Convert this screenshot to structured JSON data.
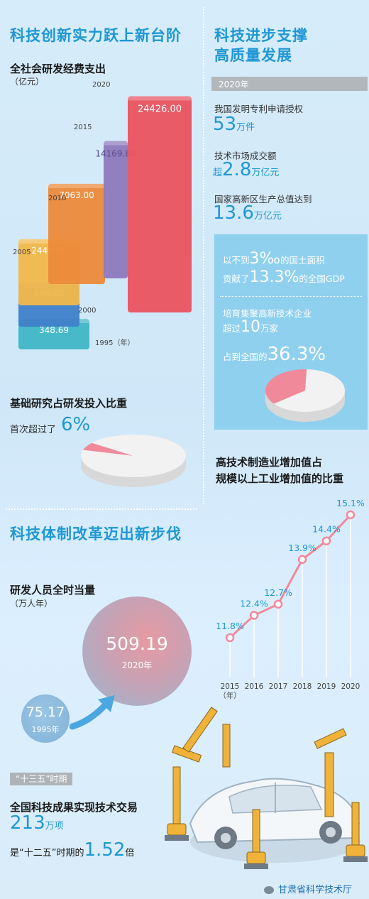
{
  "left": {
    "title": "科技创新实力跃上新台阶",
    "rd_title": "全社会研发经费支出",
    "rd_unit": "（亿元）",
    "basic_title": "基础研究占研发投入比重",
    "basic_text": "首次超过了",
    "basic_value": "6%"
  },
  "right": {
    "title_line1": "科技进步支撑",
    "title_line2": "高质量发展",
    "year_tag": "2020年",
    "items": [
      {
        "label": "我国发明专利申请授权",
        "prefix": "",
        "value": "53",
        "unit": "万件"
      },
      {
        "label": "技术市场成交额",
        "prefix": "超",
        "value": "2.8",
        "unit": "万亿元"
      },
      {
        "label": "国家高新区生产总值达到",
        "prefix": "",
        "value": "13.6",
        "unit": "万亿元"
      }
    ],
    "panel1_pre": "以不到",
    "panel1_val1": "3‰",
    "panel1_mid": "的国土面积",
    "panel1_pre2": "贡献了",
    "panel1_val2": "13.3%",
    "panel1_post": "的全国GDP",
    "panel2_line1": "培育集聚高新技术企业",
    "panel2_pre": "超过",
    "panel2_val": "10",
    "panel2_unit": "万家",
    "panel2_pre2": "占到全国的",
    "panel2_val2": "36.3%",
    "mfg_title_line1": "高技术制造业增加值占",
    "mfg_title_line2": "规模以上工业增加值的比重"
  },
  "reform": {
    "title": "科技体制改革迈出新步伐",
    "staff_title": "研发人员全时当量",
    "staff_unit": "（万人年）",
    "big_value": "509.19",
    "big_year": "2020年",
    "small_value": "75.17",
    "small_year": "1995年",
    "period_tag": "“十三五”时期",
    "trade_title": "全国科技成果实现技术交易",
    "trade_value": "213",
    "trade_unit": "万项",
    "compare_pre": "是“十二五”时期的",
    "compare_value": "1.52",
    "compare_unit": "倍"
  },
  "watermark": "甘肃省科学技术厅",
  "colors": {
    "accent": "#1f97d4",
    "pink": "#f08a9a",
    "red": "#e9535f",
    "panel": "#8fd0ef"
  },
  "chart_data": [
    {
      "type": "bar",
      "title": "全社会研发经费支出",
      "ylabel": "（亿元）",
      "categories": [
        "1995",
        "2000",
        "2005",
        "2010",
        "2015",
        "2020"
      ],
      "category_labels": [
        "1995（年）",
        "2000",
        "2005",
        "2010",
        "2015",
        "2020"
      ],
      "values": [
        348.69,
        896.0,
        2449.97,
        7063.0,
        14169.88,
        24426.0
      ],
      "value_labels": [
        "348.69",
        "896.00",
        "2449.97",
        "7063.00",
        "14169.88",
        "24426.00"
      ],
      "colors": [
        "#3fb6c6",
        "#3f7fc9",
        "#f2b84b",
        "#ec8a3a",
        "#8e79bd",
        "#e9535f"
      ]
    },
    {
      "type": "pie",
      "title": "基础研究占研发投入比重",
      "values": [
        6,
        94
      ],
      "colors": [
        "#f08a9a",
        "#f2f2f2"
      ]
    },
    {
      "type": "pie",
      "values": [
        36.3,
        63.7
      ],
      "colors": [
        "#f08a9a",
        "#f2f2f2"
      ]
    },
    {
      "type": "line",
      "title": "高技术制造业增加值占规模以上工业增加值的比重",
      "x": [
        "2015",
        "2016",
        "2017",
        "2018",
        "2019",
        "2020"
      ],
      "x_labels": [
        "2015\n（年）",
        "2016",
        "2017",
        "2018",
        "2019",
        "2020"
      ],
      "values": [
        11.8,
        12.4,
        12.7,
        13.9,
        14.4,
        15.1
      ],
      "value_labels": [
        "11.8%",
        "12.4%",
        "12.7%",
        "13.9%",
        "14.4%",
        "15.1%"
      ],
      "ylim": [
        11.0,
        15.5
      ],
      "color": "#f08a9a"
    }
  ]
}
